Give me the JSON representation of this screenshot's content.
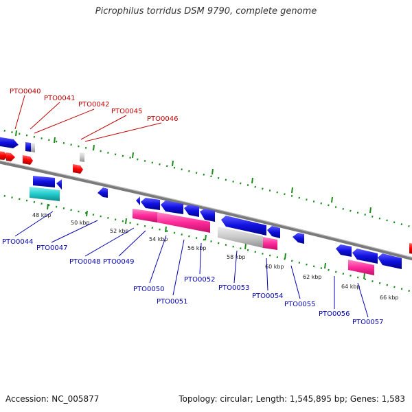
{
  "title": "Picrophilus torridus DSM 9790, complete genome",
  "accession": "Accession: NC_005877",
  "summary": "Topology: circular; Length: 1,545,895 bp; Genes: 1,583",
  "kbp_ticks": [
    "48 kbp",
    "50 kbp",
    "52 kbp",
    "54 kbp",
    "56 kbp",
    "58 kbp",
    "60 kbp",
    "62 kbp",
    "64 kbp",
    "66 kbp"
  ],
  "red_labels": [
    "PTO0040",
    "PTO0041",
    "PTO0042",
    "PTO0045",
    "PTO0046"
  ],
  "blue_labels": [
    "PTO0044",
    "PTO0047",
    "PTO0048",
    "PTO0049",
    "PTO0050",
    "PTO0051",
    "PTO0052",
    "PTO0053",
    "PTO0054",
    "PTO0055",
    "PTO0056",
    "PTO0057"
  ],
  "colors": {
    "forward_gene": "#1010e0",
    "forward_rna": "#ff0000",
    "reverse_gene": "#1010e0",
    "pink_feature": "#ff2a9a",
    "cyan_feature": "#22cccc",
    "grey_feature": "#c8c8c8",
    "backbone": "#808080",
    "tick_green": "#1a8a1a"
  }
}
